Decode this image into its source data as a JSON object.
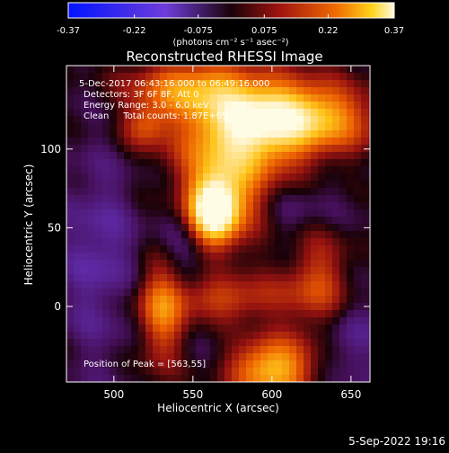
{
  "chart_data": {
    "type": "heatmap",
    "title": "Reconstructed RHESSI Image",
    "xlabel": "Heliocentric X (arcsec)",
    "ylabel": "Heliocentric Y (arcsec)",
    "xlim": [
      470,
      662
    ],
    "ylim": [
      -48,
      153
    ],
    "x_ticks": [
      500,
      550,
      600,
      650
    ],
    "y_ticks": [
      0,
      50,
      100
    ],
    "colorbar": {
      "range": [
        -0.37,
        0.37
      ],
      "tick_values": [
        -0.37,
        -0.22,
        -0.075,
        0.075,
        0.22,
        0.37
      ],
      "tick_labels": [
        "-0.37",
        "-0.22",
        "-0.075",
        "0.075",
        "0.22",
        "0.37"
      ],
      "unit_label": "(photons cm⁻² s⁻¹ asec⁻²)"
    },
    "annotations": [
      "5-Dec-2017 06:43:16.000 to 06:49:16.000",
      "Detectors: 3F 6F 8F, Att 0",
      "Energy Range: 3.0 - 6.0 keV",
      "Clean     Total counts: 1.87E+05"
    ],
    "peak_label": "Position of Peak = [563,55]",
    "peak": [
      563,
      55
    ],
    "sources": [
      {
        "x": 563,
        "y": 60,
        "sx": 10,
        "sy": 14,
        "amp": 0.37
      },
      {
        "x": 572,
        "y": 80,
        "sx": 22,
        "sy": 28,
        "amp": 0.24
      },
      {
        "x": 590,
        "y": 118,
        "sx": 32,
        "sy": 18,
        "amp": 0.25
      },
      {
        "x": 548,
        "y": 140,
        "sx": 28,
        "sy": 12,
        "amp": 0.2
      },
      {
        "x": 625,
        "y": 120,
        "sx": 30,
        "sy": 16,
        "amp": 0.2
      },
      {
        "x": 520,
        "y": 115,
        "sx": 10,
        "sy": 10,
        "amp": 0.14
      },
      {
        "x": 600,
        "y": -40,
        "sx": 18,
        "sy": 14,
        "amp": 0.28
      },
      {
        "x": 530,
        "y": -5,
        "sx": 10,
        "sy": 25,
        "amp": 0.18
      },
      {
        "x": 570,
        "y": 5,
        "sx": 32,
        "sy": 10,
        "amp": 0.14
      },
      {
        "x": 630,
        "y": 15,
        "sx": 14,
        "sy": 25,
        "amp": 0.14
      },
      {
        "x": 490,
        "y": 30,
        "sx": 16,
        "sy": 40,
        "amp": -0.08
      },
      {
        "x": 545,
        "y": 40,
        "sx": 14,
        "sy": 20,
        "amp": -0.07
      },
      {
        "x": 645,
        "y": -20,
        "sx": 14,
        "sy": 20,
        "amp": -0.07
      },
      {
        "x": 610,
        "y": 60,
        "sx": 20,
        "sy": 14,
        "amp": -0.06
      }
    ]
  },
  "footer": {
    "timestamp": "5-Sep-2022 19:16"
  }
}
